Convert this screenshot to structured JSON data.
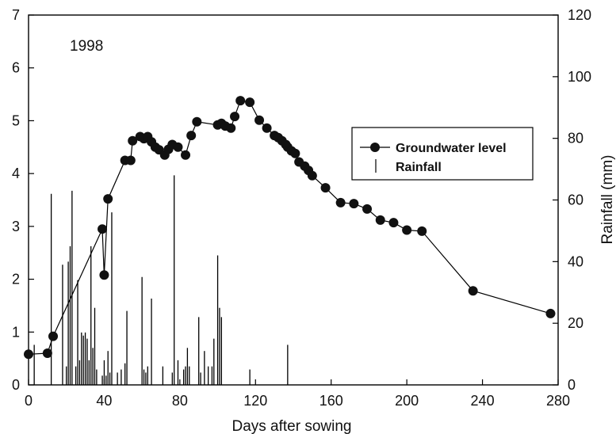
{
  "chart_data": {
    "type": "line",
    "annotation": "1998",
    "xlabel": "Days after sowing",
    "ylabel": "",
    "y2label": "Rainfall (mm)",
    "xlim": [
      0,
      280
    ],
    "ylim": [
      0,
      7
    ],
    "y2lim": [
      0,
      120
    ],
    "xticks": [
      0,
      40,
      80,
      120,
      160,
      200,
      240,
      280
    ],
    "yticks": [
      0,
      1,
      2,
      3,
      4,
      5,
      6,
      7
    ],
    "y2ticks": [
      0,
      20,
      40,
      60,
      80,
      100,
      120
    ],
    "grid": false,
    "legend_position": "right",
    "series": [
      {
        "name": "Groundwater level",
        "kind": "line-marker",
        "axis": "left",
        "x": [
          0,
          10,
          13,
          39,
          40,
          42,
          51,
          54,
          55,
          59,
          61,
          63,
          65,
          67,
          69,
          72,
          74,
          76,
          79,
          83,
          86,
          89,
          100,
          102,
          104,
          107,
          109,
          112,
          117,
          122,
          126,
          130,
          132,
          134,
          136,
          137,
          139,
          141,
          143,
          146,
          148,
          150,
          157,
          165,
          172,
          179,
          186,
          193,
          200,
          208,
          235,
          276
        ],
        "y": [
          0.58,
          0.6,
          0.92,
          2.95,
          2.08,
          3.52,
          4.25,
          4.25,
          4.62,
          4.7,
          4.66,
          4.7,
          4.6,
          4.5,
          4.45,
          4.35,
          4.46,
          4.55,
          4.5,
          4.35,
          4.72,
          4.98,
          4.92,
          4.95,
          4.9,
          4.86,
          5.08,
          5.38,
          5.35,
          5.01,
          4.86,
          4.72,
          4.68,
          4.62,
          4.55,
          4.5,
          4.43,
          4.38,
          4.22,
          4.14,
          4.06,
          3.96,
          3.73,
          3.45,
          3.43,
          3.33,
          3.12,
          3.07,
          2.93,
          2.91,
          1.78,
          1.35
        ]
      },
      {
        "name": "Rainfall",
        "kind": "bar",
        "axis": "right",
        "x": [
          3,
          12,
          18,
          20,
          21,
          22,
          23,
          25,
          26,
          27,
          28,
          29,
          30,
          31,
          32,
          33,
          34,
          35,
          36,
          39,
          40,
          41,
          42,
          43,
          44,
          47,
          49,
          51,
          52,
          60,
          61,
          62,
          63,
          65,
          71,
          76,
          77,
          79,
          82,
          83,
          84,
          85,
          90,
          91,
          93,
          95,
          97,
          98,
          100,
          101,
          102,
          117,
          137
        ],
        "values": [
          13,
          62,
          39,
          6,
          40,
          45,
          63,
          6,
          34,
          8,
          17,
          16,
          17,
          15,
          8,
          45,
          12,
          25,
          5,
          3,
          8,
          3,
          11,
          4,
          56,
          4,
          5,
          7,
          24,
          35,
          5,
          4,
          6,
          28,
          6,
          4,
          68,
          8,
          5,
          6,
          12,
          6,
          22,
          4,
          11,
          6,
          6,
          15,
          42,
          25,
          22,
          5,
          13
        ]
      }
    ]
  }
}
